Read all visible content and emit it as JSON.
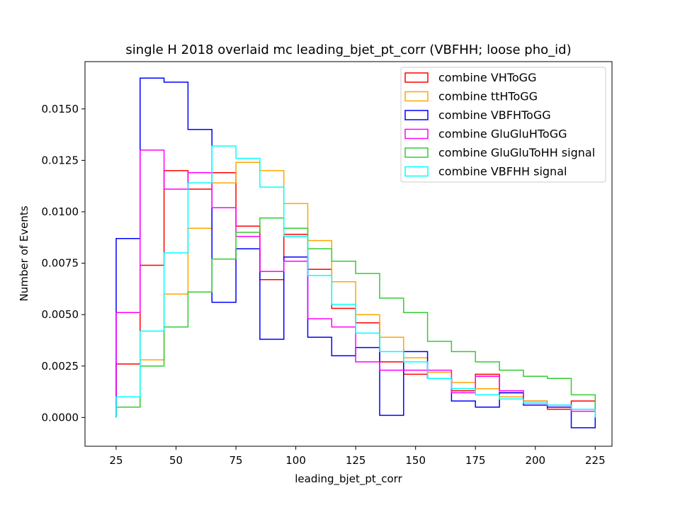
{
  "chart_data": {
    "type": "histogram-step",
    "title": "single H 2018 overlaid mc leading_bjet_pt_corr (VBFHH; loose pho_id)",
    "xlabel": "leading_bjet_pt_corr",
    "ylabel": "Number of Events",
    "xlim": [
      12,
      232
    ],
    "ylim": [
      -0.0014,
      0.0173
    ],
    "xticks": [
      25,
      50,
      75,
      100,
      125,
      150,
      175,
      200,
      225
    ],
    "yticks": [
      0.0,
      0.0025,
      0.005,
      0.0075,
      0.01,
      0.0125,
      0.015
    ],
    "ytick_labels": [
      "0.0000",
      "0.0025",
      "0.0050",
      "0.0075",
      "0.0100",
      "0.0125",
      "0.0150"
    ],
    "legend_position": "top-right",
    "bin_edges": [
      25,
      35,
      45,
      55,
      65,
      75,
      85,
      95,
      105,
      115,
      125,
      135,
      145,
      155,
      165,
      175,
      185,
      195,
      205,
      215,
      225
    ],
    "series": [
      {
        "name": "combine VHToGG",
        "color": "#ff0000",
        "values": [
          0.0026,
          0.0074,
          0.012,
          0.0111,
          0.0119,
          0.0093,
          0.0067,
          0.0089,
          0.0072,
          0.0053,
          0.0046,
          0.0027,
          0.0021,
          0.0019,
          0.0013,
          0.0021,
          0.0012,
          0.0008,
          0.0004,
          0.0008
        ]
      },
      {
        "name": "combine ttHToGG",
        "color": "#ffa500",
        "values": [
          0.0005,
          0.0028,
          0.006,
          0.0092,
          0.0114,
          0.0124,
          0.012,
          0.0104,
          0.0086,
          0.0066,
          0.005,
          0.0039,
          0.0029,
          0.0022,
          0.0017,
          0.0014,
          0.001,
          0.0008,
          0.0005,
          0.0004
        ]
      },
      {
        "name": "combine VBFHToGG",
        "color": "#0000ff",
        "values": [
          0.0087,
          0.0165,
          0.0163,
          0.014,
          0.0056,
          0.0082,
          0.0038,
          0.0078,
          0.0039,
          0.003,
          0.0034,
          0.0001,
          0.0032,
          0.0019,
          0.0008,
          0.0005,
          0.0012,
          0.0006,
          0.0005,
          -0.0005
        ]
      },
      {
        "name": "combine GluGluHToGG",
        "color": "#ff00ff",
        "values": [
          0.0051,
          0.013,
          0.0111,
          0.0119,
          0.0102,
          0.0088,
          0.0071,
          0.0076,
          0.0048,
          0.0044,
          0.0027,
          0.0023,
          0.0023,
          0.0023,
          0.0012,
          0.002,
          0.0013,
          0.0007,
          0.0006,
          0.0003
        ]
      },
      {
        "name": "combine GluGluToHH signal",
        "color": "#33cc33",
        "values": [
          0.0005,
          0.0025,
          0.0044,
          0.0061,
          0.0077,
          0.009,
          0.0097,
          0.0092,
          0.0082,
          0.0076,
          0.007,
          0.0058,
          0.0051,
          0.0037,
          0.0032,
          0.0027,
          0.0023,
          0.002,
          0.0019,
          0.0011
        ]
      },
      {
        "name": "combine VBFHH signal",
        "color": "#00ffff",
        "values": [
          0.001,
          0.0042,
          0.008,
          0.0114,
          0.0132,
          0.0126,
          0.0112,
          0.0088,
          0.0069,
          0.0055,
          0.0041,
          0.0032,
          0.0027,
          0.0019,
          0.0014,
          0.0011,
          0.0009,
          0.0007,
          0.0006,
          0.0004
        ]
      }
    ]
  }
}
